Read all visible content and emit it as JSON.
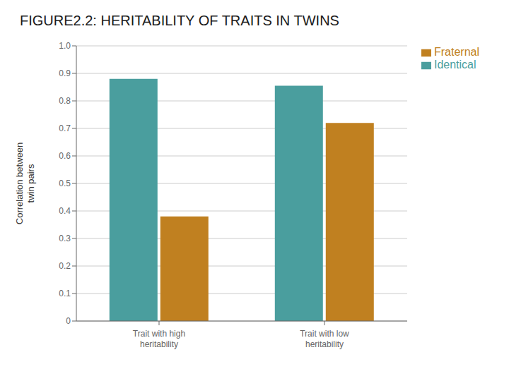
{
  "chart_data": {
    "type": "bar",
    "title": "FIGURE2.2: HERITABILITY OF TRAITS IN TWINS",
    "categories": [
      "Trait with high\nheritability",
      "Trait with low\nheritability"
    ],
    "series": [
      {
        "name": "Identical",
        "color": "#4A9E9E",
        "values": [
          0.88,
          0.855
        ]
      },
      {
        "name": "Fraternal",
        "color": "#C08020",
        "values": [
          0.38,
          0.72
        ]
      }
    ],
    "ylabel": "Correlation between\ntwin pairs",
    "ylim": [
      0,
      1.0
    ],
    "yticks": [
      0,
      0.1,
      0.2,
      0.3,
      0.4,
      0.5,
      0.6,
      0.7,
      0.8,
      0.9,
      {
        "value": 1,
        "label": "1.0"
      }
    ],
    "grid": true,
    "legend": "right"
  }
}
